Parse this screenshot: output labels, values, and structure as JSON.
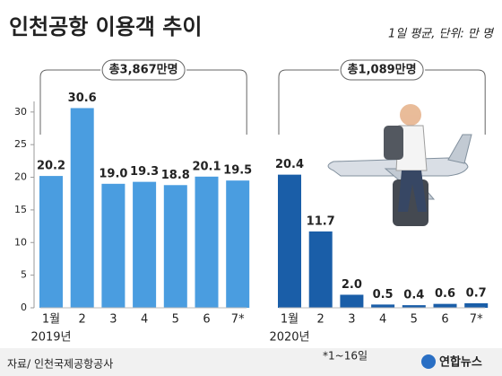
{
  "chart_data": {
    "type": "bar",
    "title": "인천공항 이용객 추이",
    "subtitle": "1일 평균, 단위: 만 명",
    "categories": [
      "1월",
      "2",
      "3",
      "4",
      "5",
      "6",
      "7*"
    ],
    "series": [
      {
        "name": "2019년",
        "color": "#4a9de0",
        "total": "총3,867만명",
        "values": [
          20.2,
          30.6,
          19.0,
          19.3,
          18.8,
          20.1,
          19.5
        ],
        "value_labels": [
          "20.2",
          "30.6",
          "19.0",
          "19.3",
          "18.8",
          "20.1",
          "19.5"
        ]
      },
      {
        "name": "2020년",
        "color": "#1a5ea8",
        "total": "총1,089만명",
        "values": [
          20.4,
          11.7,
          2.0,
          0.5,
          0.4,
          0.6,
          0.7
        ],
        "value_labels": [
          "20.4",
          "11.7",
          "2.0",
          "0.5",
          "0.4",
          "0.6",
          "0.7"
        ]
      }
    ],
    "ylim": [
      0,
      33
    ],
    "yticks": [
      0,
      5,
      10,
      15,
      20,
      25,
      30
    ],
    "notes": [
      "*1~16일",
      "자료/ 인천국제공항공사",
      "연합뉴스"
    ]
  }
}
